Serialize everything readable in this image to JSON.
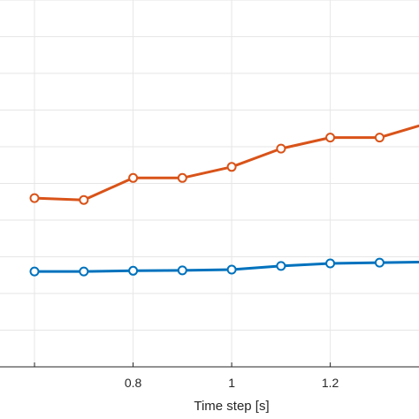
{
  "chart_data": {
    "type": "line",
    "xlabel": "Time step [s]",
    "ylabel": "",
    "xlim": [
      0.53,
      1.38
    ],
    "ylim": [
      0,
      10
    ],
    "grid": true,
    "x_ticks": [
      {
        "value": 0.6,
        "label": ""
      },
      {
        "value": 0.8,
        "label": "0.8"
      },
      {
        "value": 1.0,
        "label": "1"
      },
      {
        "value": 1.2,
        "label": "1.2"
      }
    ],
    "y_gridlines": [
      0,
      1,
      2,
      3,
      4,
      5,
      6,
      7,
      8,
      9,
      10
    ],
    "series": [
      {
        "color": "#d95319",
        "x": [
          0.6,
          0.7,
          0.8,
          0.9,
          1.0,
          1.1,
          1.2,
          1.3,
          1.4
        ],
        "y": [
          4.6,
          4.55,
          5.15,
          5.15,
          5.45,
          5.95,
          6.25,
          6.25,
          6.65
        ]
      },
      {
        "color": "#0072bd",
        "x": [
          0.6,
          0.7,
          0.8,
          0.9,
          1.0,
          1.1,
          1.2,
          1.3,
          1.4
        ],
        "y": [
          2.6,
          2.6,
          2.62,
          2.63,
          2.65,
          2.75,
          2.82,
          2.84,
          2.86
        ]
      }
    ]
  }
}
